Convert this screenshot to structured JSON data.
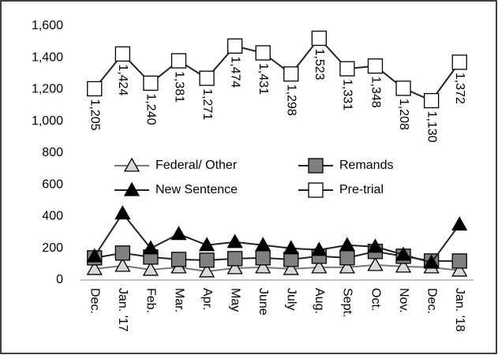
{
  "chart_data": {
    "type": "line",
    "categories": [
      "Dec.",
      "Jan. '17",
      "Feb.",
      "Mar.",
      "Apr.",
      "May",
      "June",
      "July",
      "Aug.",
      "Sept.",
      "Oct.",
      "Nov.",
      "Dec.",
      "Jan. '18"
    ],
    "series": [
      {
        "name": "Federal/ Other",
        "color": "#d9d9d9",
        "marker": "triangle",
        "values": [
          70,
          90,
          65,
          80,
          55,
          75,
          80,
          70,
          80,
          80,
          95,
          85,
          80,
          60
        ]
      },
      {
        "name": "Remands",
        "color": "#808080",
        "marker": "square",
        "values": [
          140,
          170,
          145,
          130,
          125,
          135,
          140,
          130,
          150,
          140,
          180,
          150,
          120,
          120
        ]
      },
      {
        "name": "New Sentence",
        "color": "#000000",
        "marker": "triangle",
        "values": [
          150,
          420,
          200,
          290,
          220,
          240,
          220,
          200,
          190,
          220,
          210,
          160,
          110,
          350
        ]
      },
      {
        "name": "Pre-trial",
        "color": "#ffffff",
        "marker": "square",
        "values": [
          1205,
          1424,
          1240,
          1381,
          1271,
          1474,
          1431,
          1298,
          1523,
          1331,
          1348,
          1208,
          1130,
          1372
        ],
        "value_labels": [
          "1,205",
          "1,424",
          "1,240",
          "1,381",
          "1,271",
          "1,474",
          "1,431",
          "1,298",
          "1,523",
          "1,331",
          "1,348",
          "1,208",
          "1,130",
          "1,372"
        ]
      }
    ],
    "ylim": [
      0,
      1600
    ],
    "yticks": [
      0,
      200,
      400,
      600,
      800,
      {
        "value": 1000,
        "label": "1,000"
      },
      {
        "value": 1200,
        "label": "1,200"
      },
      {
        "value": 1400,
        "label": "1,400"
      },
      {
        "value": 1600,
        "label": "1,600"
      }
    ],
    "legend": "center"
  }
}
